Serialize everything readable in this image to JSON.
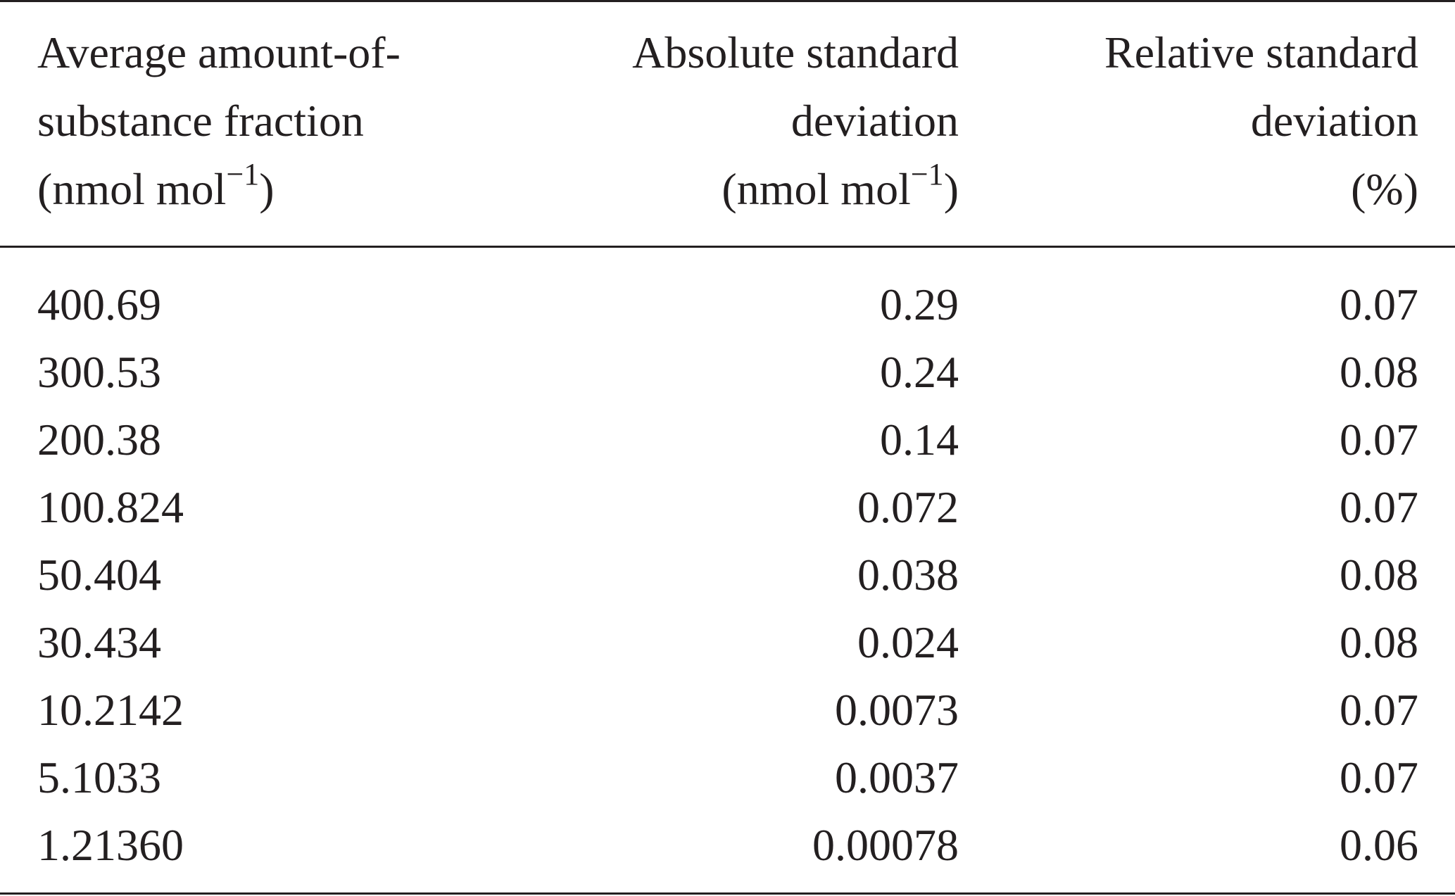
{
  "table": {
    "headers": [
      {
        "lines": [
          "Average amount-of-",
          "substance fraction"
        ],
        "unit_prefix": "(nmol mol",
        "unit_sup": "−1",
        "unit_suffix": ")"
      },
      {
        "lines": [
          "Absolute standard",
          "deviation"
        ],
        "unit_prefix": "(nmol mol",
        "unit_sup": "−1",
        "unit_suffix": ")"
      },
      {
        "lines": [
          "Relative standard",
          "deviation"
        ],
        "unit_prefix": "(%)",
        "unit_sup": "",
        "unit_suffix": ""
      }
    ],
    "rows": [
      [
        "400.69",
        "0.29",
        "0.07"
      ],
      [
        "300.53",
        "0.24",
        "0.08"
      ],
      [
        "200.38",
        "0.14",
        "0.07"
      ],
      [
        "100.824",
        "0.072",
        "0.07"
      ],
      [
        "50.404",
        "0.038",
        "0.08"
      ],
      [
        "30.434",
        "0.024",
        "0.08"
      ],
      [
        "10.2142",
        "0.0073",
        "0.07"
      ],
      [
        "5.1033",
        "0.0037",
        "0.07"
      ],
      [
        "1.21360",
        "0.00078",
        "0.06"
      ]
    ]
  }
}
